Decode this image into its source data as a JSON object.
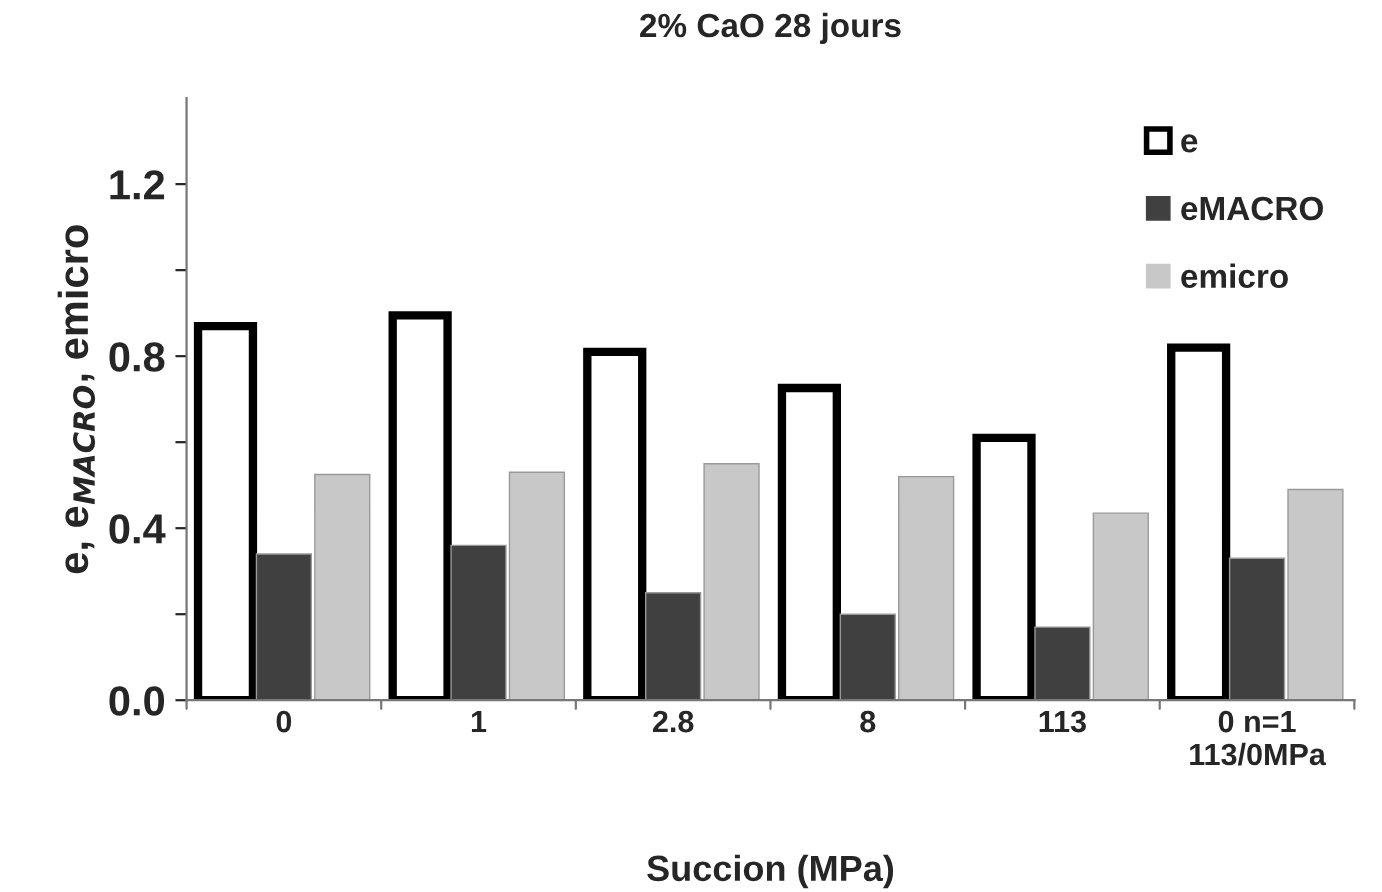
{
  "chart_data": {
    "type": "bar",
    "title": "2% CaO 28 jours",
    "xlabel": "Succion (MPa)",
    "ylabel": "e, e$_{MACRO}$, emicro",
    "categories": [
      "0",
      "1",
      "2.8",
      "8",
      "113",
      "0 n=1\n113/0MPa"
    ],
    "series": [
      {
        "name": "e",
        "color": "#ffffff",
        "values": [
          0.87,
          0.895,
          0.81,
          0.726,
          0.61,
          0.82
        ]
      },
      {
        "name": "eMACRO",
        "color": "#404040",
        "values": [
          0.34,
          0.36,
          0.25,
          0.2,
          0.17,
          0.33
        ]
      },
      {
        "name": "emicro",
        "color": "#c8c8c8",
        "values": [
          0.525,
          0.53,
          0.55,
          0.52,
          0.435,
          0.49
        ]
      }
    ],
    "ylim": [
      0,
      1.4
    ],
    "yticks": [
      {
        "value": 0,
        "label": "0.0"
      },
      {
        "value": 0.2,
        "label": null
      },
      {
        "value": 0.4,
        "label": "0.4"
      },
      {
        "value": 0.6,
        "label": null
      },
      {
        "value": 0.8,
        "label": "0.8"
      },
      {
        "value": 1.0,
        "label": null
      },
      {
        "value": 1.2,
        "label": "1.2"
      }
    ],
    "grid": false,
    "legend": "top right"
  }
}
